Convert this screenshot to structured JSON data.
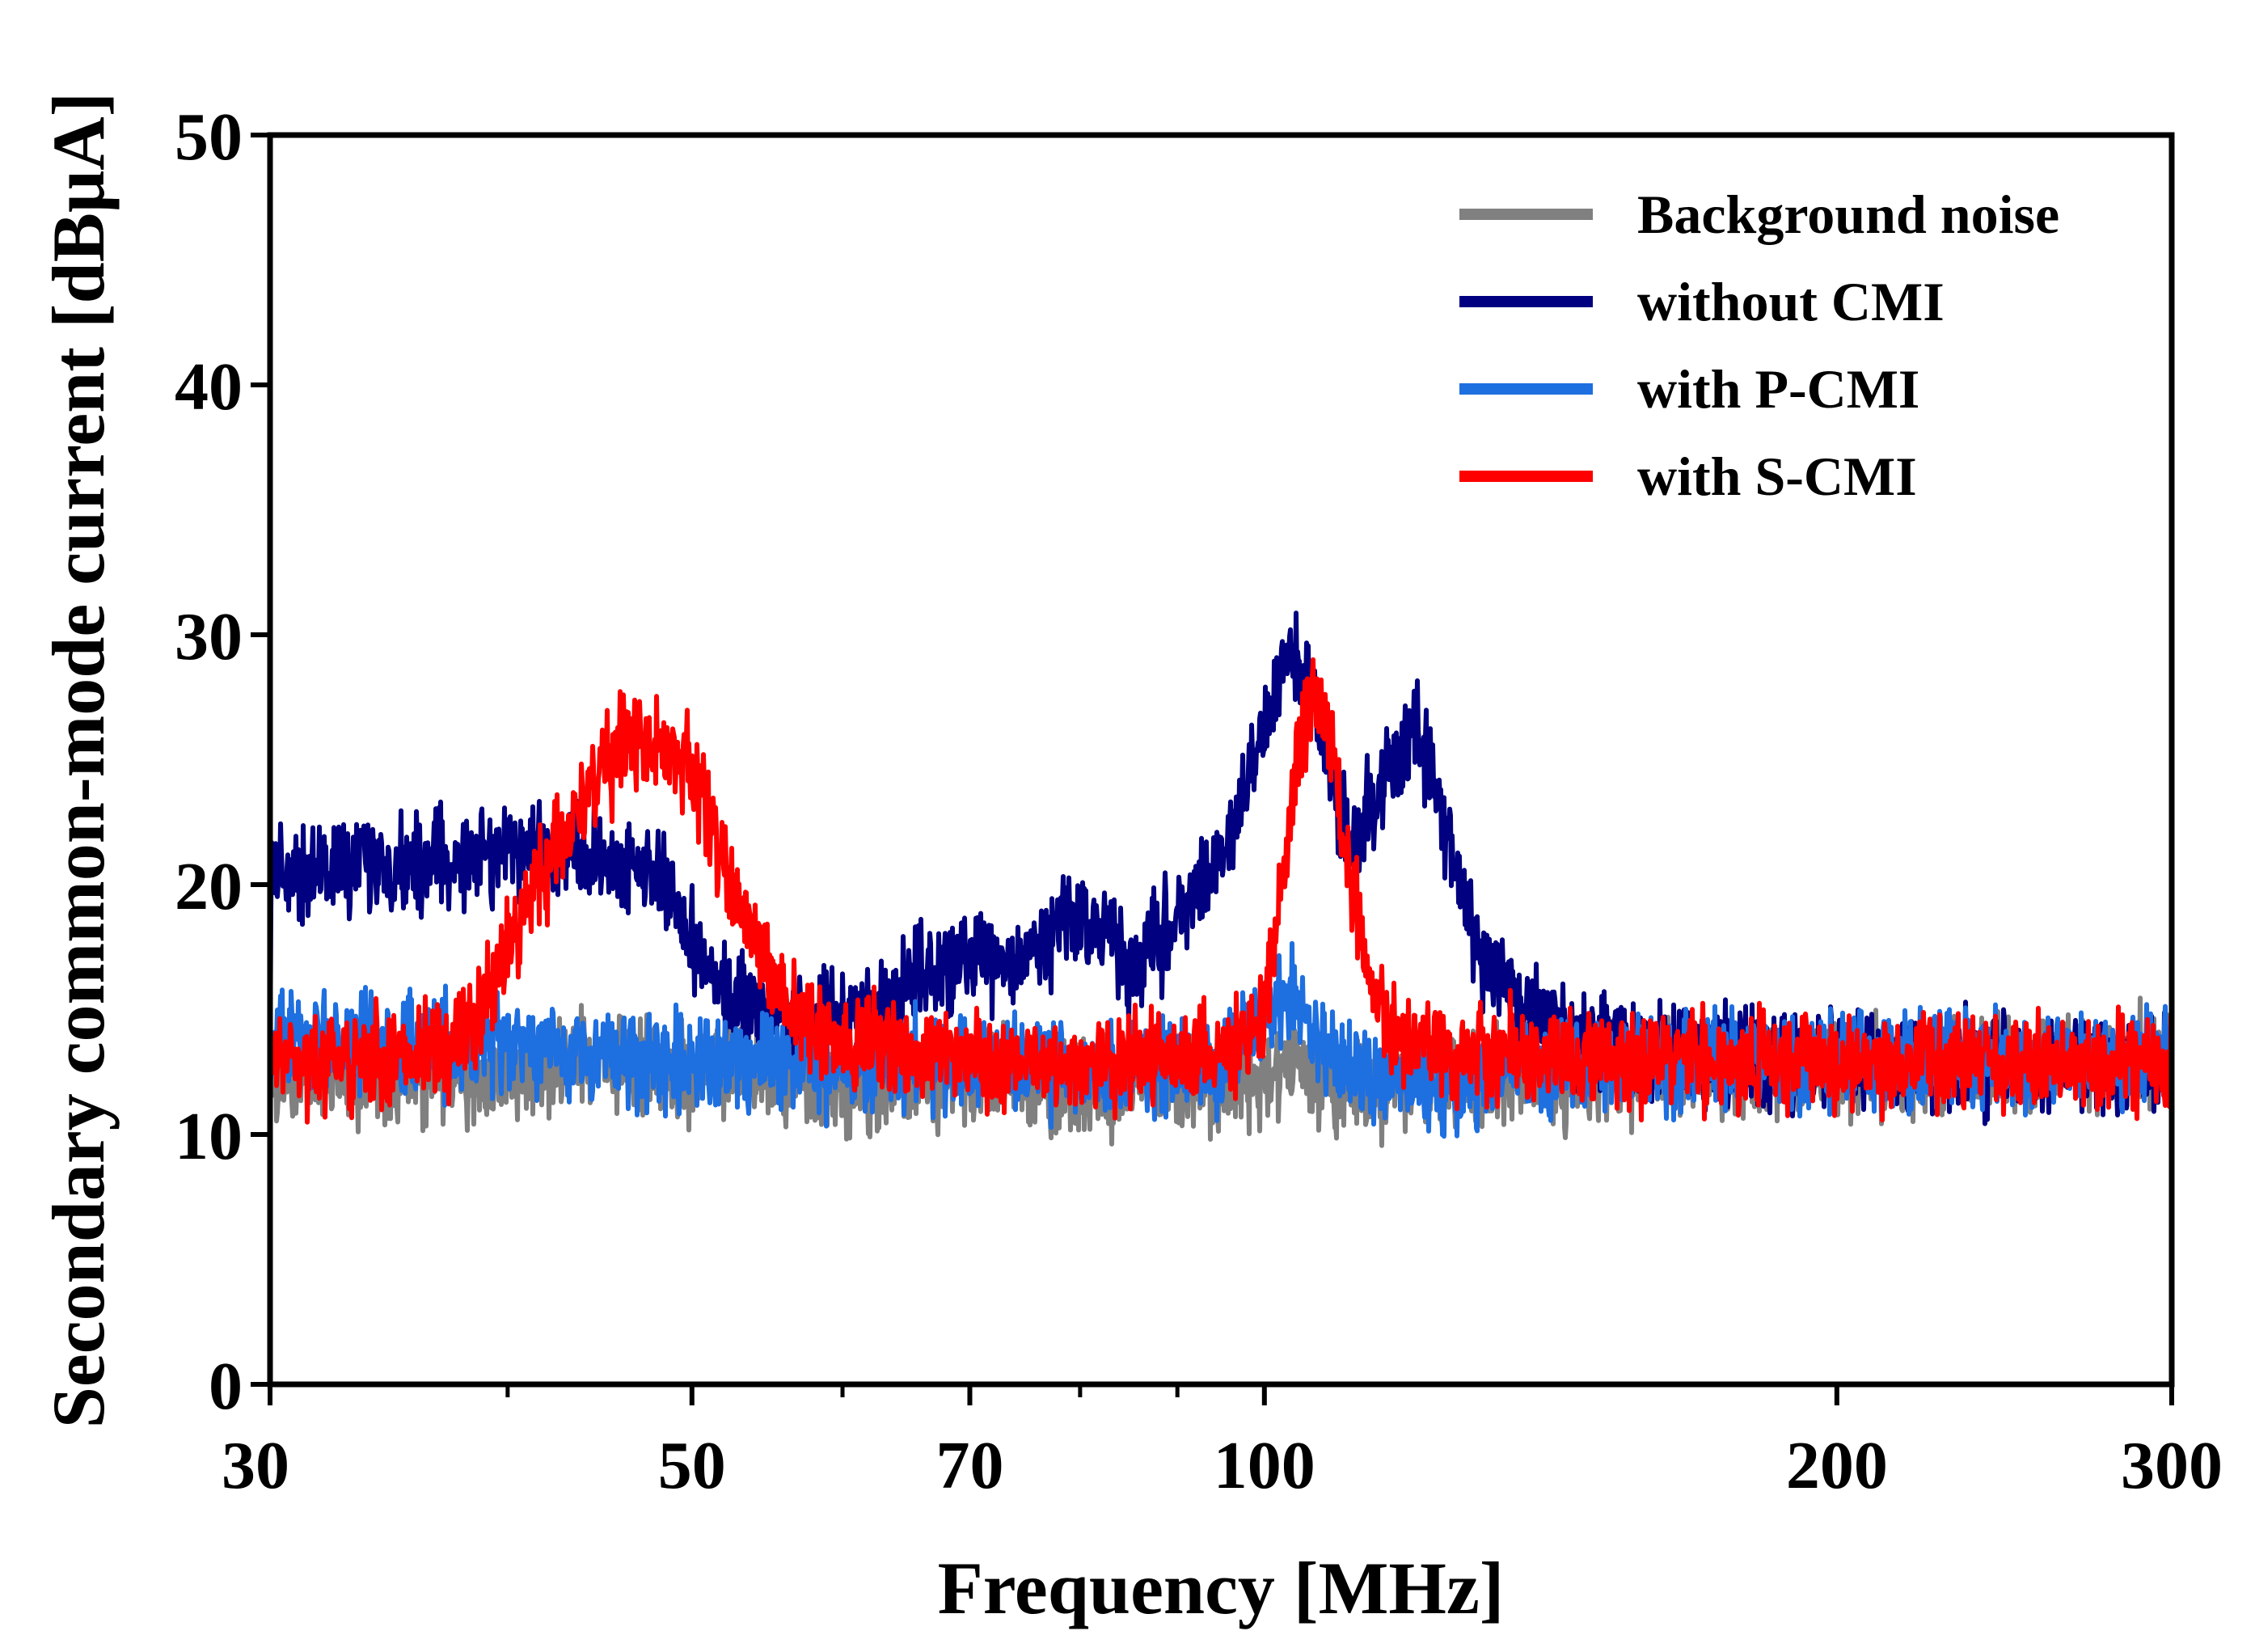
{
  "chart_data": {
    "type": "line",
    "title": "",
    "xlabel": "Frequency [MHz]",
    "ylabel": "Secondary common-mode current [dBμA]",
    "xscale": "log",
    "xlim": [
      30,
      300
    ],
    "ylim": [
      0,
      50
    ],
    "xticks": [
      30,
      50,
      70,
      100,
      200,
      300
    ],
    "xminor": [
      40,
      60,
      80,
      90
    ],
    "yticks": [
      0,
      10,
      20,
      30,
      40,
      50
    ],
    "grid": false,
    "legend_position": "top-right",
    "noise_amplitude_db": 1.6,
    "series": [
      {
        "name": "Background noise",
        "color": "#808080",
        "points": [
          [
            30,
            12.2
          ],
          [
            40,
            12.3
          ],
          [
            45,
            13.0
          ],
          [
            50,
            12.5
          ],
          [
            60,
            12.0
          ],
          [
            70,
            12.2
          ],
          [
            80,
            12.0
          ],
          [
            95,
            12.0
          ],
          [
            100,
            12.2
          ],
          [
            103,
            12.8
          ],
          [
            107,
            12.2
          ],
          [
            120,
            12.0
          ],
          [
            200,
            12.6
          ],
          [
            300,
            13.0
          ]
        ]
      },
      {
        "name": "without CMI",
        "color": "#000080",
        "points": [
          [
            30,
            20.5
          ],
          [
            35,
            20.8
          ],
          [
            40,
            21.3
          ],
          [
            42,
            21.6
          ],
          [
            45,
            21.0
          ],
          [
            48,
            20.5
          ],
          [
            50,
            17.5
          ],
          [
            52,
            15.5
          ],
          [
            55,
            14.8
          ],
          [
            60,
            14.5
          ],
          [
            64,
            15.0
          ],
          [
            66,
            16.5
          ],
          [
            70,
            16.8
          ],
          [
            75,
            17.2
          ],
          [
            80,
            18.8
          ],
          [
            83,
            17.5
          ],
          [
            85,
            16.8
          ],
          [
            88,
            17.8
          ],
          [
            92,
            19.5
          ],
          [
            96,
            22.0
          ],
          [
            100,
            26.0
          ],
          [
            103,
            29.5
          ],
          [
            106,
            27.5
          ],
          [
            110,
            22.0
          ],
          [
            113,
            22.5
          ],
          [
            118,
            25.5
          ],
          [
            120,
            26.2
          ],
          [
            124,
            23.0
          ],
          [
            130,
            17.0
          ],
          [
            136,
            15.2
          ],
          [
            150,
            13.5
          ],
          [
            200,
            12.8
          ],
          [
            300,
            12.8
          ]
        ]
      },
      {
        "name": "with P-CMI",
        "color": "#1e6fe0",
        "points": [
          [
            30,
            13.8
          ],
          [
            40,
            13.5
          ],
          [
            50,
            13.0
          ],
          [
            60,
            12.8
          ],
          [
            70,
            12.7
          ],
          [
            80,
            12.6
          ],
          [
            95,
            12.8
          ],
          [
            100,
            14.5
          ],
          [
            103,
            15.5
          ],
          [
            107,
            14.0
          ],
          [
            110,
            12.5
          ],
          [
            120,
            12.0
          ],
          [
            150,
            12.8
          ],
          [
            200,
            13.0
          ],
          [
            300,
            13.0
          ]
        ]
      },
      {
        "name": "with S-CMI",
        "color": "#ff0000",
        "points": [
          [
            30,
            13.0
          ],
          [
            36,
            13.0
          ],
          [
            38,
            13.8
          ],
          [
            40,
            17.5
          ],
          [
            42,
            21.0
          ],
          [
            44,
            23.5
          ],
          [
            46,
            25.5
          ],
          [
            48,
            26.0
          ],
          [
            50,
            24.5
          ],
          [
            52,
            21.0
          ],
          [
            55,
            16.5
          ],
          [
            58,
            14.0
          ],
          [
            60,
            13.7
          ],
          [
            70,
            13.0
          ],
          [
            90,
            13.0
          ],
          [
            96,
            13.2
          ],
          [
            100,
            15.0
          ],
          [
            102,
            19.5
          ],
          [
            104,
            25.0
          ],
          [
            106,
            28.0
          ],
          [
            108,
            26.0
          ],
          [
            110,
            22.0
          ],
          [
            113,
            17.0
          ],
          [
            116,
            14.0
          ],
          [
            120,
            13.5
          ],
          [
            150,
            13.0
          ],
          [
            200,
            13.0
          ],
          [
            300,
            12.8
          ]
        ]
      }
    ]
  }
}
